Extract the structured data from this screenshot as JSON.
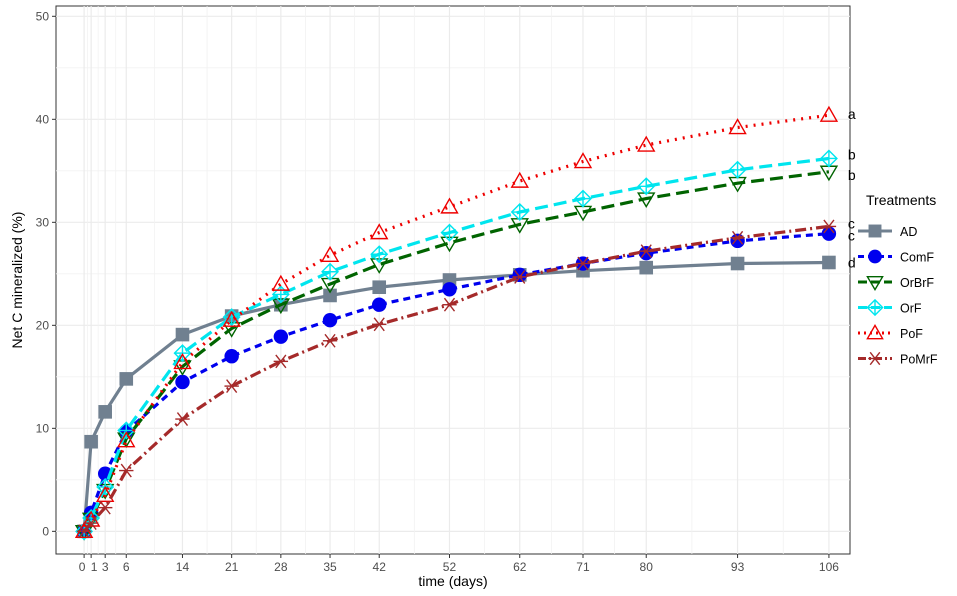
{
  "chart_data": {
    "type": "line",
    "xlabel": "time (days)",
    "ylabel": "Net C mineralized (%)",
    "x": [
      0,
      1,
      3,
      6,
      14,
      21,
      28,
      35,
      42,
      52,
      62,
      71,
      80,
      93,
      106
    ],
    "x_tick_labels": [
      "0",
      "1",
      "3",
      "6",
      "14",
      "21",
      "28",
      "35",
      "42",
      "52",
      "62",
      "71",
      "80",
      "93",
      "106"
    ],
    "xlim": [
      -4,
      109
    ],
    "ylim": [
      -2.2,
      51
    ],
    "y_ticks": [
      0,
      10,
      20,
      30,
      40,
      50
    ],
    "grid": true,
    "legend": {
      "title": "Treatments",
      "placement": "right"
    },
    "series": [
      {
        "name": "AD",
        "color": "#708090",
        "marker": "square",
        "line": "solid",
        "values": [
          0,
          8.7,
          11.6,
          14.8,
          19.1,
          20.9,
          22.0,
          22.9,
          23.7,
          24.4,
          24.9,
          25.3,
          25.6,
          26.0,
          26.1
        ],
        "sig_letter": "d"
      },
      {
        "name": "ComF",
        "color": "#0000ee",
        "marker": "circle",
        "line": "dashed",
        "values": [
          0,
          1.8,
          5.6,
          9.7,
          14.5,
          17.0,
          18.9,
          20.5,
          22.0,
          23.5,
          24.9,
          26.0,
          27.0,
          28.2,
          28.9
        ],
        "sig_letter": "c"
      },
      {
        "name": "OrBrF",
        "color": "#006400",
        "marker": "triangle-down",
        "line": "longdash",
        "values": [
          0,
          1.2,
          4.0,
          9.0,
          16.0,
          19.7,
          22.0,
          24.0,
          25.9,
          28.0,
          29.8,
          31.0,
          32.3,
          33.8,
          34.9
        ],
        "sig_letter": "b"
      },
      {
        "name": "OrF",
        "color": "#00e5ee",
        "marker": "diamond-plus",
        "line": "longdash",
        "values": [
          0,
          1.3,
          4.3,
          9.8,
          17.3,
          20.8,
          23.0,
          25.2,
          26.9,
          29.0,
          31.0,
          32.3,
          33.5,
          35.1,
          36.2
        ],
        "sig_letter": "b"
      },
      {
        "name": "PoF",
        "color": "#ee0000",
        "marker": "triangle-up",
        "line": "dotted",
        "values": [
          0,
          1.1,
          3.5,
          8.8,
          16.4,
          20.5,
          24.0,
          26.8,
          29.0,
          31.5,
          34.0,
          35.9,
          37.5,
          39.2,
          40.4
        ],
        "sig_letter": "a"
      },
      {
        "name": "PoMrF",
        "color": "#a52a2a",
        "marker": "asterisk",
        "line": "dotdash",
        "values": [
          0,
          0.8,
          2.3,
          5.9,
          10.9,
          14.1,
          16.5,
          18.5,
          20.1,
          22.0,
          24.7,
          26.0,
          27.2,
          28.5,
          29.6
        ],
        "sig_letter": "c"
      }
    ]
  }
}
